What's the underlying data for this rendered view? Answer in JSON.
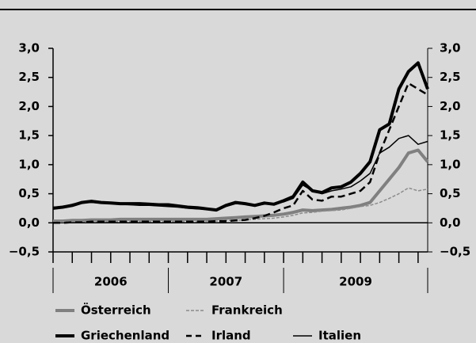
{
  "chart_data": {
    "type": "line",
    "xlim": [
      0,
      39
    ],
    "xticks": [
      0,
      2,
      4,
      6,
      8,
      10,
      12,
      14,
      16,
      18,
      20,
      22,
      24,
      26,
      28,
      30,
      32,
      34,
      36,
      38
    ],
    "x_separators": [
      12,
      24
    ],
    "year_labels": [
      {
        "value": 6,
        "label": "2006"
      },
      {
        "value": 18,
        "label": "2007"
      },
      {
        "value": 31.5,
        "label": "2009"
      }
    ],
    "x": [
      0,
      1,
      2,
      3,
      4,
      5,
      6,
      7,
      8,
      9,
      10,
      11,
      12,
      13,
      14,
      15,
      16,
      17,
      18,
      19,
      20,
      21,
      22,
      23,
      24,
      25,
      26,
      27,
      28,
      29,
      30,
      31,
      32,
      33,
      34,
      35,
      36,
      37,
      38,
      39
    ],
    "ylim": [
      -0.5,
      3.0
    ],
    "yticks": [
      {
        "value": -0.5,
        "label": "−0,5"
      },
      {
        "value": 0,
        "label": "0,0"
      },
      {
        "value": 0.5,
        "label": "0,5"
      },
      {
        "value": 1.0,
        "label": "1,0"
      },
      {
        "value": 1.5,
        "label": "1,5"
      },
      {
        "value": 2.0,
        "label": "2,0"
      },
      {
        "value": 2.5,
        "label": "2,5"
      },
      {
        "value": 3.0,
        "label": "3,0"
      }
    ],
    "series": [
      {
        "name": "Österreich",
        "color": "#808080",
        "width": 4,
        "dash": false,
        "values": [
          0.03,
          0.03,
          0.04,
          0.04,
          0.05,
          0.05,
          0.05,
          0.06,
          0.06,
          0.06,
          0.06,
          0.06,
          0.06,
          0.06,
          0.06,
          0.06,
          0.06,
          0.07,
          0.08,
          0.09,
          0.1,
          0.11,
          0.12,
          0.13,
          0.15,
          0.18,
          0.22,
          0.21,
          0.22,
          0.23,
          0.25,
          0.27,
          0.3,
          0.35,
          0.55,
          0.75,
          0.95,
          1.2,
          1.25,
          1.05
        ]
      },
      {
        "name": "Frankreich",
        "color": "#8c8c8c",
        "width": 1.5,
        "dash": true,
        "values": [
          0.02,
          0.02,
          0.02,
          0.02,
          0.02,
          0.02,
          0.02,
          0.02,
          0.02,
          0.02,
          0.02,
          0.02,
          0.02,
          0.02,
          0.02,
          0.02,
          0.03,
          0.03,
          0.04,
          0.04,
          0.05,
          0.06,
          0.07,
          0.08,
          0.1,
          0.13,
          0.17,
          0.18,
          0.2,
          0.21,
          0.22,
          0.25,
          0.28,
          0.3,
          0.35,
          0.42,
          0.5,
          0.6,
          0.55,
          0.58
        ]
      },
      {
        "name": "Griechenland",
        "color": "#000000",
        "width": 4,
        "dash": false,
        "values": [
          0.25,
          0.27,
          0.3,
          0.35,
          0.37,
          0.35,
          0.34,
          0.33,
          0.33,
          0.33,
          0.32,
          0.31,
          0.31,
          0.29,
          0.27,
          0.26,
          0.24,
          0.22,
          0.3,
          0.35,
          0.33,
          0.3,
          0.34,
          0.32,
          0.38,
          0.45,
          0.7,
          0.55,
          0.52,
          0.6,
          0.62,
          0.7,
          0.85,
          1.05,
          1.6,
          1.7,
          2.3,
          2.6,
          2.75,
          2.3
        ]
      },
      {
        "name": "Irland",
        "color": "#000000",
        "width": 2.5,
        "dash": true,
        "values": [
          0.0,
          0.0,
          0.01,
          0.01,
          0.02,
          0.02,
          0.02,
          0.02,
          0.02,
          0.02,
          0.02,
          0.02,
          0.02,
          0.02,
          0.02,
          0.02,
          0.02,
          0.03,
          0.03,
          0.04,
          0.05,
          0.08,
          0.12,
          0.18,
          0.25,
          0.3,
          0.55,
          0.4,
          0.38,
          0.45,
          0.45,
          0.5,
          0.55,
          0.7,
          1.2,
          1.6,
          2.0,
          2.4,
          2.3,
          2.2
        ]
      },
      {
        "name": "Italien",
        "color": "#000000",
        "width": 1.5,
        "dash": false,
        "values": [
          0.27,
          0.28,
          0.32,
          0.35,
          0.35,
          0.34,
          0.33,
          0.32,
          0.31,
          0.3,
          0.3,
          0.29,
          0.28,
          0.27,
          0.25,
          0.24,
          0.23,
          0.22,
          0.28,
          0.33,
          0.32,
          0.3,
          0.32,
          0.33,
          0.36,
          0.42,
          0.65,
          0.55,
          0.5,
          0.55,
          0.58,
          0.62,
          0.72,
          0.85,
          1.2,
          1.3,
          1.45,
          1.5,
          1.35,
          1.4
        ]
      }
    ]
  }
}
